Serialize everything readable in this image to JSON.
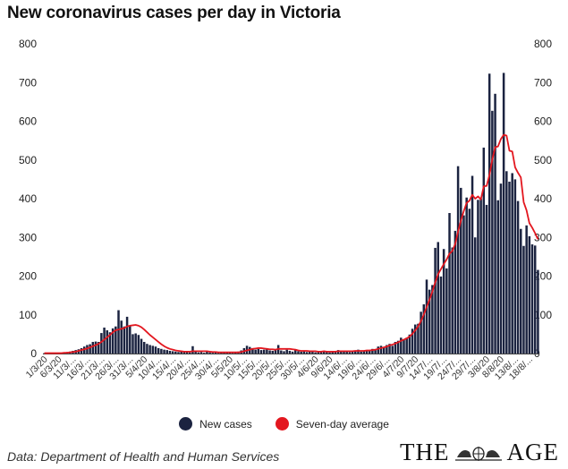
{
  "header": {
    "title": "New coronavirus cases per day in Victoria"
  },
  "legend": {
    "new_cases": {
      "label": "New cases",
      "color": "#1b2340"
    },
    "average": {
      "label": "Seven-day average",
      "color": "#e3171f"
    }
  },
  "footer": {
    "source": "Data: Department of Health and Human Services"
  },
  "logo": {
    "left": "THE",
    "right": "AGE"
  },
  "chart_data": {
    "type": "bar",
    "title": "New coronavirus cases per day in Victoria",
    "xlabel": "",
    "ylabel": "",
    "ylim": [
      0,
      800
    ],
    "yticks": [
      0,
      100,
      200,
      300,
      400,
      500,
      600,
      700,
      800
    ],
    "grid": false,
    "x_tick_labels": [
      "1/3/20",
      "6/3/20",
      "11/3/...",
      "16/3/...",
      "21/3/...",
      "26/3/...",
      "31/3/...",
      "5/4/20",
      "10/4/...",
      "15/4/...",
      "20/4/...",
      "25/4/...",
      "30/4/...",
      "5/5/20",
      "10/5/...",
      "15/5/...",
      "20/5/...",
      "25/5/...",
      "30/5/...",
      "4/6/20",
      "9/6/20",
      "14/6/...",
      "19/6/...",
      "24/6/...",
      "29/6/...",
      "4/7/20",
      "9/7/20",
      "14/7/...",
      "19/7/...",
      "24/7/...",
      "29/7/...",
      "3/8/20",
      "8/8/20",
      "13/8/...",
      "18/8/..."
    ],
    "series": [
      {
        "name": "New cases",
        "type": "bar",
        "values": [
          1,
          0,
          1,
          1,
          1,
          1,
          2,
          3,
          4,
          5,
          7,
          9,
          11,
          14,
          18,
          22,
          24,
          30,
          31,
          30,
          53,
          67,
          60,
          55,
          65,
          70,
          112,
          85,
          70,
          95,
          72,
          50,
          52,
          48,
          38,
          30,
          25,
          22,
          20,
          18,
          14,
          12,
          10,
          9,
          7,
          6,
          5,
          4,
          5,
          6,
          4,
          3,
          19,
          5,
          3,
          4,
          2,
          6,
          3,
          2,
          3,
          1,
          2,
          3,
          4,
          3,
          1,
          2,
          5,
          8,
          14,
          20,
          17,
          14,
          10,
          12,
          9,
          10,
          12,
          8,
          7,
          9,
          22,
          8,
          6,
          10,
          7,
          5,
          9,
          6,
          5,
          8,
          4,
          6,
          5,
          3,
          5,
          4,
          7,
          5,
          3,
          4,
          6,
          9,
          5,
          8,
          6,
          4,
          7,
          6,
          10,
          5,
          6,
          8,
          7,
          12,
          9,
          18,
          20,
          15,
          22,
          25,
          20,
          30,
          33,
          41,
          37,
          41,
          49,
          64,
          75,
          77,
          108,
          127,
          191,
          165,
          177,
          273,
          288,
          199,
          270,
          220,
          363,
          274,
          317,
          484,
          428,
          357,
          403,
          374,
          459,
          300,
          397,
          400,
          532,
          384,
          723,
          627,
          671,
          396,
          439,
          725,
          471,
          444,
          466,
          450,
          394,
          322,
          278,
          331,
          303,
          282,
          279,
          216
        ]
      },
      {
        "name": "Seven-day average",
        "type": "line",
        "values": [
          1,
          1,
          1,
          1,
          1,
          1,
          1,
          2,
          2,
          3,
          4,
          5,
          7,
          9,
          11,
          13,
          16,
          19,
          22,
          25,
          30,
          36,
          42,
          48,
          55,
          60,
          62,
          64,
          66,
          70,
          72,
          73,
          74,
          72,
          68,
          62,
          55,
          48,
          42,
          36,
          30,
          24,
          19,
          15,
          12,
          10,
          8,
          7,
          6,
          5,
          5,
          5,
          6,
          6,
          6,
          6,
          6,
          6,
          5,
          4,
          4,
          3,
          3,
          3,
          3,
          3,
          3,
          3,
          3,
          4,
          6,
          8,
          10,
          12,
          13,
          14,
          14,
          13,
          12,
          11,
          11,
          10,
          12,
          12,
          12,
          12,
          12,
          11,
          10,
          8,
          7,
          7,
          7,
          6,
          6,
          6,
          5,
          5,
          6,
          5,
          5,
          5,
          5,
          6,
          6,
          6,
          6,
          6,
          6,
          7,
          7,
          7,
          7,
          8,
          8,
          9,
          10,
          12,
          14,
          16,
          18,
          21,
          23,
          26,
          29,
          33,
          36,
          39,
          44,
          51,
          60,
          70,
          84,
          101,
          120,
          139,
          160,
          184,
          205,
          218,
          231,
          243,
          258,
          265,
          283,
          315,
          343,
          368,
          389,
          395,
          410,
          400,
          406,
          398,
          432,
          433,
          461,
          501,
          533,
          535,
          554,
          565,
          563,
          524,
          522,
          481,
          467,
          455,
          391,
          370,
          337,
          325,
          311,
          295
        ]
      }
    ]
  }
}
